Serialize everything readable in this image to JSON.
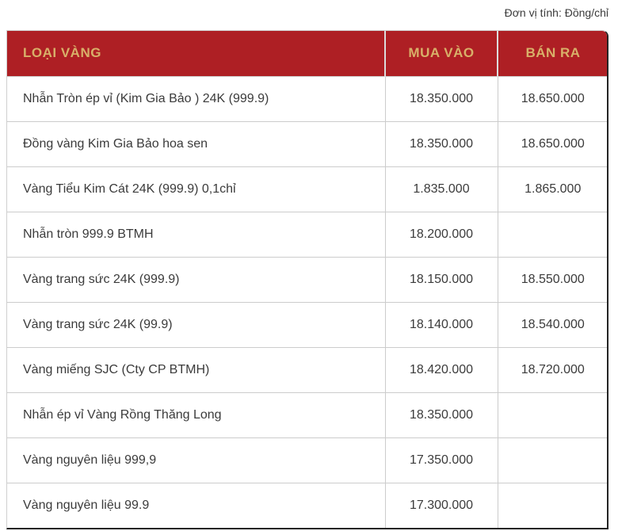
{
  "unit_note": "Đơn vị tính: Đồng/chỉ",
  "colors": {
    "header_bg": "#AE1F24",
    "header_text": "#D8B069",
    "border": "#CCCCCC",
    "text": "#3B3B3B",
    "edge": "#252525"
  },
  "table": {
    "columns": [
      "LOẠI VÀNG",
      "MUA VÀO",
      "BÁN RA"
    ],
    "rows": [
      {
        "type": "Nhẫn Tròn ép vỉ (Kim Gia Bảo ) 24K (999.9)",
        "buy": "18.350.000",
        "sell": "18.650.000"
      },
      {
        "type": "Đồng vàng Kim Gia Bảo hoa sen",
        "buy": "18.350.000",
        "sell": "18.650.000"
      },
      {
        "type": "Vàng Tiểu Kim Cát 24K (999.9) 0,1chỉ",
        "buy": "1.835.000",
        "sell": "1.865.000"
      },
      {
        "type": "Nhẫn tròn 999.9 BTMH",
        "buy": "18.200.000",
        "sell": ""
      },
      {
        "type": "Vàng trang sức 24K (999.9)",
        "buy": "18.150.000",
        "sell": "18.550.000"
      },
      {
        "type": "Vàng trang sức 24K (99.9)",
        "buy": "18.140.000",
        "sell": "18.540.000"
      },
      {
        "type": "Vàng miếng SJC (Cty CP BTMH)",
        "buy": "18.420.000",
        "sell": "18.720.000"
      },
      {
        "type": "Nhẫn ép vỉ Vàng Rồng Thăng Long",
        "buy": "18.350.000",
        "sell": ""
      },
      {
        "type": "Vàng nguyên liệu 999,9",
        "buy": "17.350.000",
        "sell": ""
      },
      {
        "type": "Vàng nguyên liệu 99.9",
        "buy": "17.300.000",
        "sell": ""
      }
    ]
  }
}
